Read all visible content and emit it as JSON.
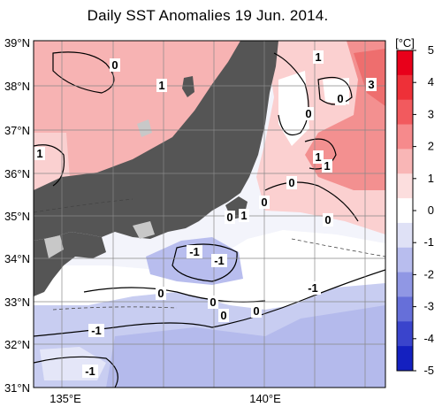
{
  "title": "Daily SST Anomalies 19 Jun. 2014.",
  "colorbar": {
    "unit": "[°C]",
    "ticks": [
      "5",
      "4",
      "3",
      "2",
      "1",
      "0",
      "-1",
      "-2",
      "-3",
      "-4",
      "-5"
    ],
    "colors": [
      "#e8001a",
      "#ee3038",
      "#f25a5e",
      "#f68a8c",
      "#f9b6b6",
      "#fcdede",
      "#ffffff",
      "#dfe1f6",
      "#b8bdee",
      "#9097e4",
      "#666fd9",
      "#3a44cc",
      "#1420c0"
    ]
  },
  "axes": {
    "lat_labels": [
      "39°N",
      "38°N",
      "37°N",
      "36°N",
      "35°N",
      "34°N",
      "33°N",
      "32°N",
      "31°N"
    ],
    "lon_labels": [
      "135°E",
      "140°E"
    ]
  },
  "contour_labels": [
    "0",
    "1",
    "1",
    "1",
    "0",
    "1",
    "3",
    "0",
    "0",
    "0",
    "1",
    "1",
    "0",
    "0",
    "0",
    "0",
    "-1",
    "-1",
    "0",
    "0",
    "-1",
    "-1",
    "-1"
  ],
  "colors": {
    "land": "#555555",
    "no_data": "#c8c8c8",
    "grid": "#888888"
  }
}
